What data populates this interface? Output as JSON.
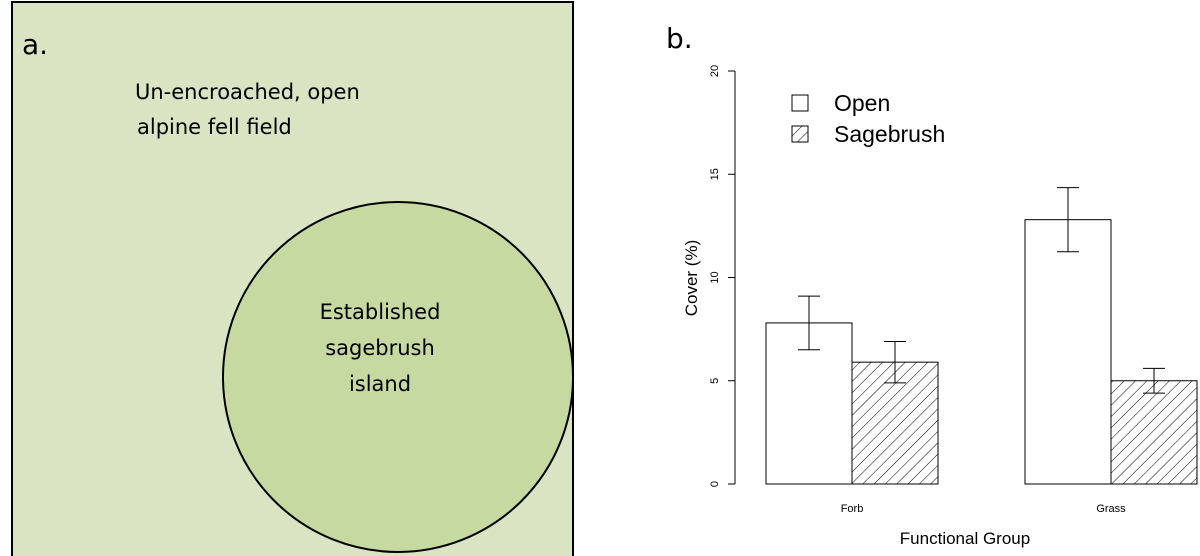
{
  "panel_a": {
    "label": "a.",
    "outer_label": [
      "Un-encroached, open",
      "alpine fell field"
    ],
    "inner_label": [
      "Established",
      "sagebrush",
      "island"
    ]
  },
  "chart_data": {
    "type": "bar",
    "panel_label": "b.",
    "xlabel": "Functional Group",
    "ylabel": "Cover (%)",
    "categories": [
      "Forb",
      "Grass"
    ],
    "series": [
      {
        "name": "Open",
        "color": "#ffffff",
        "hatch": false,
        "values": [
          7.8,
          12.8
        ],
        "errors": [
          1.3,
          1.55
        ]
      },
      {
        "name": "Sagebrush",
        "color": "#ffffff",
        "hatch": true,
        "values": [
          5.9,
          5.0
        ],
        "errors": [
          1.0,
          0.6
        ]
      }
    ],
    "ylim": [
      0,
      20
    ],
    "yticks": [
      0,
      5,
      10,
      15,
      20
    ],
    "legend": "top-left",
    "grid": false
  }
}
